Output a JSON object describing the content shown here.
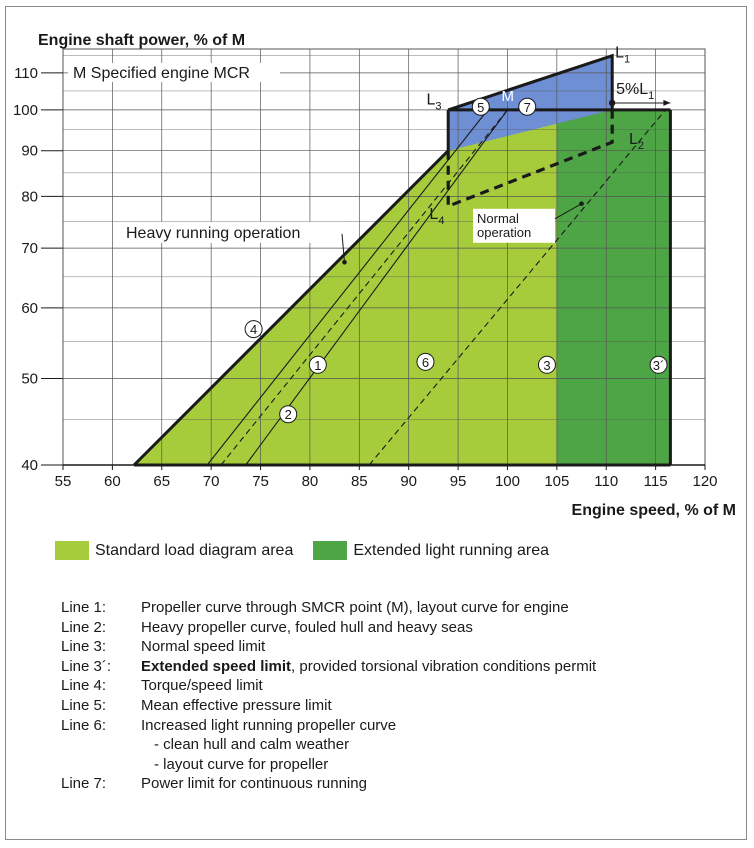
{
  "colors": {
    "standard_area": "#a6cc3c",
    "extended_area": "#4ea545",
    "overload_area": "#6f8fd4",
    "grid": "#555555",
    "outline": "#1a1a1a"
  },
  "chart_data": {
    "type": "area",
    "title": "",
    "ylabel": "Engine shaft power, % of M",
    "xlabel": "Engine speed, % of M",
    "x_ticks": [
      55,
      60,
      65,
      70,
      75,
      80,
      85,
      90,
      95,
      100,
      105,
      110,
      115,
      120
    ],
    "y_ticks": [
      40,
      50,
      60,
      70,
      80,
      90,
      100,
      110
    ],
    "xlim": [
      55,
      120
    ],
    "ylim": [
      40,
      117
    ],
    "y_scale": "log",
    "grid": true,
    "annotation_M": "M  Specified engine MCR",
    "annotation_heavy": "Heavy running operation",
    "annotation_normal": [
      "Normal",
      "operation"
    ],
    "point_labels": {
      "M": "M",
      "L1": "L",
      "L1_sub": "1",
      "L2": "L",
      "L2_sub": "2",
      "L3": "L",
      "L3_sub": "3",
      "L4": "L",
      "L4_sub": "4",
      "margin": "5%L",
      "margin_sub": "1"
    },
    "circled_labels": [
      "1",
      "2",
      "3",
      "3´",
      "4",
      "5",
      "6",
      "7"
    ],
    "regions": [
      {
        "name": "Standard load diagram area",
        "color": "#a6cc3c",
        "points": [
          [
            62.2,
            40
          ],
          [
            94,
            90
          ],
          [
            105,
            100
          ],
          [
            105,
            40
          ]
        ]
      },
      {
        "name": "Extended light running area",
        "color": "#4ea545",
        "points": [
          [
            105,
            40
          ],
          [
            105,
            100
          ],
          [
            116.5,
            100
          ],
          [
            116.5,
            40
          ]
        ]
      },
      {
        "name": "overload",
        "color": "#6f8fd4",
        "points": [
          [
            94,
            90
          ],
          [
            94,
            100
          ],
          [
            110.6,
            115
          ],
          [
            110.6,
            100
          ]
        ]
      }
    ],
    "lines": [
      {
        "id": "1",
        "style": "solid",
        "points": [
          [
            73.5,
            40
          ],
          [
            100,
            100
          ]
        ]
      },
      {
        "id": "2",
        "style": "solid",
        "points": [
          [
            69.6,
            40
          ],
          [
            98,
            100
          ]
        ]
      },
      {
        "id": "6",
        "style": "dashed",
        "points": [
          [
            86,
            40
          ],
          [
            116,
            100
          ]
        ]
      },
      {
        "id": "heavy-a",
        "style": "dashed",
        "points": [
          [
            71,
            40
          ],
          [
            100,
            100
          ]
        ]
      },
      {
        "id": "4",
        "style": "thick",
        "points": [
          [
            62.2,
            40
          ],
          [
            94,
            90
          ]
        ]
      },
      {
        "id": "5",
        "style": "thick",
        "points": [
          [
            94,
            90
          ],
          [
            94,
            100
          ]
        ]
      },
      {
        "id": "L3-L1",
        "style": "thick",
        "points": [
          [
            94,
            100
          ],
          [
            110.6,
            115
          ],
          [
            110.6,
            100
          ]
        ]
      },
      {
        "id": "L4-L2",
        "style": "thick-dashed",
        "points": [
          [
            94,
            90
          ],
          [
            94,
            78
          ],
          [
            110.6,
            92
          ],
          [
            110.6,
            100
          ]
        ]
      }
    ]
  },
  "legend": [
    {
      "label": "Standard load diagram area",
      "color": "#a6cc3c"
    },
    {
      "label": "Extended light running area",
      "color": "#4ea545"
    }
  ],
  "notes": [
    {
      "line": "Line 1:",
      "text": "Propeller curve through SMCR point (M), layout curve for engine"
    },
    {
      "line": "Line 2:",
      "text": "Heavy propeller curve, fouled hull and heavy seas"
    },
    {
      "line": "Line 3:",
      "text": "Normal speed limit"
    },
    {
      "line": "Line 3´:",
      "bold": "Extended speed limit",
      "text": ", provided torsional vibration conditions permit"
    },
    {
      "line": "Line 4:",
      "text": "Torque/speed limit"
    },
    {
      "line": "Line 5:",
      "text": "Mean effective pressure limit"
    },
    {
      "line": "Line 6:",
      "text": "Increased light running propeller curve"
    },
    {
      "line": "",
      "sub": true,
      "text": "- clean hull and calm weather"
    },
    {
      "line": "",
      "sub": true,
      "text": "- layout curve for propeller"
    },
    {
      "line": "Line 7:",
      "text": "Power limit for continuous running"
    }
  ]
}
